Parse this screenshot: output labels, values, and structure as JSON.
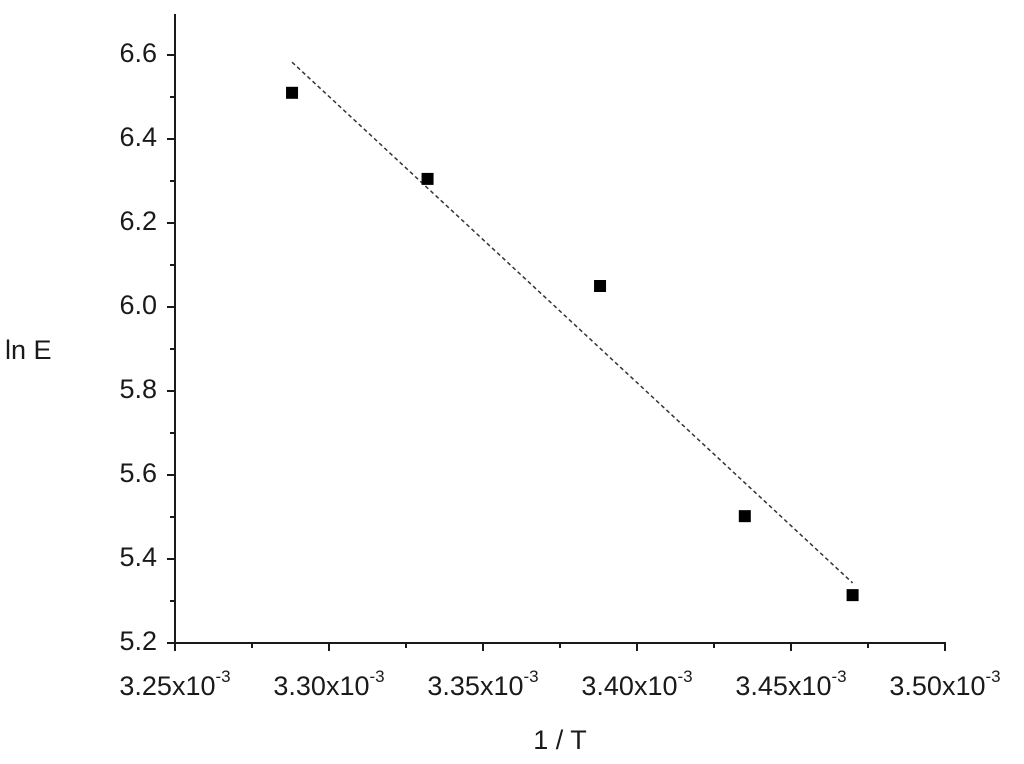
{
  "chart_data": {
    "type": "scatter",
    "xlabel": "1 / T",
    "ylabel": "ln E",
    "x": [
      0.003288,
      0.003332,
      0.003388,
      0.003435,
      0.00347
    ],
    "values": [
      6.51,
      6.305,
      6.05,
      5.502,
      5.314
    ],
    "color": "#000000",
    "fit_line": {
      "x": [
        0.003288,
        0.00347
      ],
      "values": [
        6.583,
        5.343
      ],
      "color": "#333333"
    },
    "xlim": [
      0.00325,
      0.0035
    ],
    "xticks": [
      {
        "value": 0.00325,
        "label": "3.25x10",
        "exponent": "-3"
      },
      {
        "value": 0.0033,
        "label": "3.30x10",
        "exponent": "-3"
      },
      {
        "value": 0.00335,
        "label": "3.35x10",
        "exponent": "-3"
      },
      {
        "value": 0.0034,
        "label": "3.40x10",
        "exponent": "-3"
      },
      {
        "value": 0.00345,
        "label": "3.45x10",
        "exponent": "-3"
      },
      {
        "value": 0.0035,
        "label": "3.50x10",
        "exponent": "-3"
      }
    ],
    "xminorticks": [
      0.003275,
      0.003325,
      0.003375,
      0.003425,
      0.003475
    ],
    "ylim": [
      5.2,
      6.7
    ],
    "yticks": [
      5.2,
      5.4,
      5.6,
      5.8,
      {
        "value": 6,
        "label": "6.0"
      },
      6.2,
      6.4,
      6.6
    ],
    "yminorticks": [
      5.3,
      5.5,
      5.7,
      5.9,
      6.1,
      6.3,
      6.5
    ],
    "grid": false
  }
}
